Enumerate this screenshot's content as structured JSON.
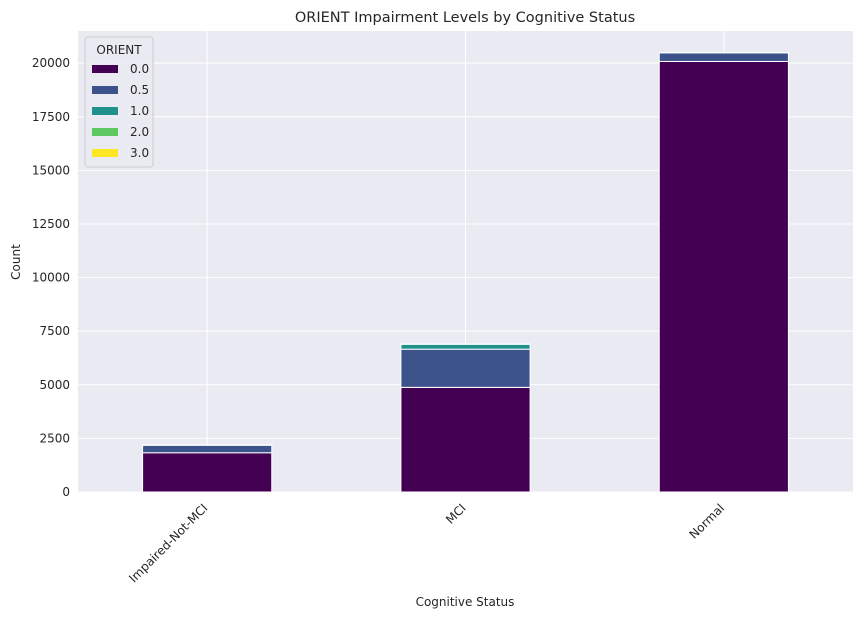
{
  "chart_data": {
    "type": "bar",
    "stacked": true,
    "title": "ORIENT Impairment Levels by Cognitive Status",
    "xlabel": "Cognitive Status",
    "ylabel": "Count",
    "categories": [
      "Impaired-Not-MCI",
      "MCI",
      "Normal"
    ],
    "ylim": [
      0,
      21500
    ],
    "yticks": [
      0,
      2500,
      5000,
      7500,
      10000,
      12500,
      15000,
      17500,
      20000
    ],
    "grid": true,
    "legend": {
      "title": "ORIENT",
      "placement": "top-left"
    },
    "series": [
      {
        "name": "0.0",
        "color": "#440154",
        "values": [
          1830,
          4880,
          20080
        ]
      },
      {
        "name": "0.5",
        "color": "#3b528b",
        "values": [
          350,
          1780,
          400
        ]
      },
      {
        "name": "1.0",
        "color": "#21918c",
        "values": [
          20,
          230,
          10
        ]
      },
      {
        "name": "2.0",
        "color": "#5ec962",
        "values": [
          0,
          10,
          0
        ]
      },
      {
        "name": "3.0",
        "color": "#fde725",
        "values": [
          0,
          0,
          0
        ]
      }
    ]
  }
}
